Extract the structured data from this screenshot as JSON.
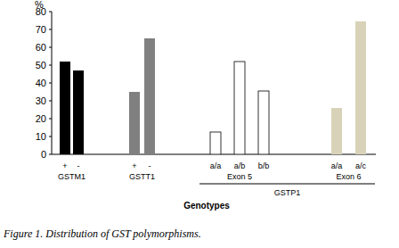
{
  "chart_data": {
    "type": "bar",
    "title": "Figure 1. Distribution of GST polymorphisms.",
    "y_label": "%",
    "x_label": "Genotypes",
    "categories": [
      "+",
      "-",
      "+",
      "-",
      "a/a",
      "a/b",
      "b/b",
      "a/a",
      "a/c"
    ],
    "values": [
      52,
      47,
      35,
      65,
      12.5,
      52,
      35.5,
      26,
      74.5
    ],
    "colors": [
      "#000000",
      "#000000",
      "#808080",
      "#808080",
      "#ffffff",
      "#ffffff",
      "#ffffff",
      "#d8d3b8",
      "#d8d3b8"
    ],
    "groups": [
      {
        "label": "GSTM1",
        "size": 2
      },
      {
        "label": "GSTT1",
        "size": 2
      },
      {
        "label": "Exon 5",
        "size": 3
      },
      {
        "label": "Exon 6",
        "size": 2
      }
    ],
    "super_groups": [
      {
        "label": "GSTP1",
        "groups": [
          2,
          3
        ]
      }
    ],
    "ylim": [
      0,
      80
    ],
    "yticks": [
      0,
      10,
      20,
      30,
      40,
      50,
      60,
      70,
      80
    ],
    "grid": false
  }
}
